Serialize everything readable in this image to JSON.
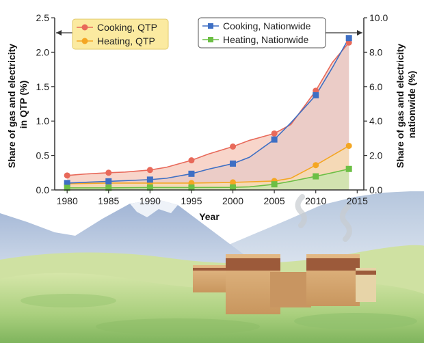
{
  "chart_data": {
    "type": "line",
    "xlabel": "Year",
    "ylabel_left": "Share of gas and electricity in QTP (%)",
    "ylabel_left_lines": [
      "Share of gas and electricity",
      "in QTP (%)"
    ],
    "ylabel_right": "Share of gas and electricity nationwide (%)",
    "ylabel_right_lines": [
      "Share of gas and electricity",
      "nationwide (%)"
    ],
    "x_ticks": [
      1980,
      1985,
      1990,
      1995,
      2000,
      2005,
      2010,
      2015
    ],
    "x_tick_labels": [
      "1980",
      "1985",
      "1990",
      "1995",
      "2000",
      "2005",
      "2010",
      "2015"
    ],
    "xlim": [
      1978.5,
      2015.8
    ],
    "ylim_left": [
      0,
      2.5
    ],
    "ylim_right": [
      0,
      10.0
    ],
    "y_left_ticks": [
      0,
      0.5,
      1.0,
      1.5,
      2.0,
      2.5
    ],
    "y_left_tick_labels": [
      "0.0",
      "0.5",
      "1.0",
      "1.5",
      "2.0",
      "2.5"
    ],
    "y_right_ticks": [
      0,
      2,
      4,
      6,
      8,
      10
    ],
    "y_right_tick_labels": [
      "0.0",
      "2.0",
      "4.0",
      "6.0",
      "8.0",
      "10.0"
    ],
    "legend_left_placement": "top-left",
    "legend_right_placement": "top-right",
    "grid": false,
    "series": [
      {
        "name": "Cooking, QTP",
        "axis": "left",
        "marker": "circle",
        "color": "#e8695a",
        "fill": "#f6c7b8",
        "x": [
          1980,
          1985,
          1990,
          1995,
          2000,
          2005,
          2010,
          2014
        ],
        "y": [
          0.21,
          0.25,
          0.29,
          0.43,
          0.63,
          0.82,
          1.44,
          2.14
        ],
        "line_x": [
          1980,
          1982,
          1985,
          1987,
          1990,
          1992,
          1995,
          1997,
          2000,
          2002,
          2005,
          2007,
          2010,
          2012,
          2014
        ],
        "line_y": [
          0.21,
          0.23,
          0.25,
          0.26,
          0.29,
          0.33,
          0.43,
          0.52,
          0.63,
          0.72,
          0.82,
          0.95,
          1.44,
          1.85,
          2.14
        ]
      },
      {
        "name": "Heating, QTP",
        "axis": "left",
        "marker": "circle",
        "color": "#f4a623",
        "fill": "#f8ddb0",
        "x": [
          1980,
          1985,
          1990,
          1995,
          2000,
          2005,
          2010,
          2014
        ],
        "y": [
          0.09,
          0.1,
          0.1,
          0.1,
          0.11,
          0.13,
          0.36,
          0.64
        ],
        "line_x": [
          1980,
          1985,
          1990,
          1995,
          2000,
          2005,
          2007,
          2010,
          2012,
          2014
        ],
        "line_y": [
          0.09,
          0.1,
          0.1,
          0.1,
          0.11,
          0.13,
          0.17,
          0.36,
          0.5,
          0.64
        ]
      },
      {
        "name": "Cooking, Nationwide",
        "axis": "right",
        "marker": "square",
        "color": "#3e6fc4",
        "fill": "#b9cdee",
        "x": [
          1980,
          1985,
          1990,
          1995,
          2000,
          2005,
          2010,
          2014
        ],
        "y": [
          0.4,
          0.5,
          0.6,
          0.94,
          1.53,
          2.93,
          5.5,
          8.82
        ],
        "line_x": [
          1980,
          1985,
          1990,
          1992,
          1995,
          1997,
          2000,
          2002,
          2005,
          2007,
          2010,
          2012,
          2014
        ],
        "line_y": [
          0.4,
          0.5,
          0.6,
          0.68,
          0.94,
          1.2,
          1.53,
          1.9,
          2.93,
          3.9,
          5.5,
          7.1,
          8.82
        ]
      },
      {
        "name": "Heating, Nationwide",
        "axis": "right",
        "marker": "square",
        "color": "#6cbf45",
        "fill": "#c6e6ad",
        "x": [
          1980,
          1985,
          1990,
          1995,
          2000,
          2005,
          2010,
          2014
        ],
        "y": [
          0.12,
          0.12,
          0.14,
          0.14,
          0.15,
          0.33,
          0.79,
          1.22
        ],
        "line_x": [
          1980,
          1985,
          1990,
          1995,
          2000,
          2002,
          2005,
          2007,
          2010,
          2012,
          2014
        ],
        "line_y": [
          0.12,
          0.12,
          0.14,
          0.14,
          0.15,
          0.18,
          0.33,
          0.5,
          0.79,
          1.0,
          1.22
        ]
      }
    ]
  },
  "colors": {
    "legend_left_bg": "#fbeaa0",
    "legend_left_border": "#e0c96a",
    "legend_right_bg": "#ffffff",
    "legend_right_border": "#555555",
    "sky": "#ffffff",
    "mountain": "#b9c8df",
    "mountain_light": "#dbe3ef",
    "grass": "#b7d58e",
    "grass_dark": "#8fbf6c",
    "building": "#d9ae7a",
    "building_dark": "#9c5a3a"
  },
  "illustration": "Tibetan plateau landscape with mountains, green grassland and traditional stone houses"
}
